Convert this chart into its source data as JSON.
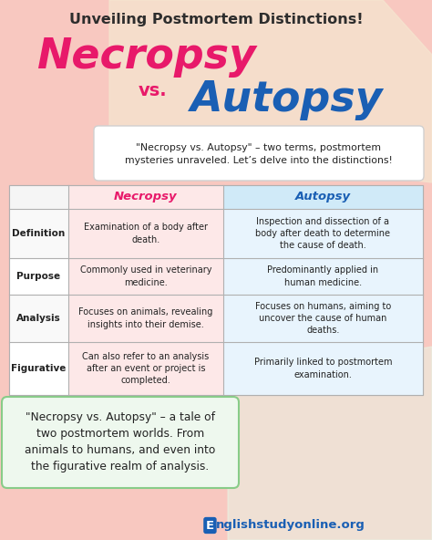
{
  "bg_color": "#f8c8c0",
  "title_line1": "Unveiling Postmortem Distinctions!",
  "title_color": "#2d2d2d",
  "necropsy_color": "#e8196a",
  "autopsy_color": "#1a5fb4",
  "vs_color": "#e8196a",
  "intro_text": "\"Necropsy vs. Autopsy\" – two terms, postmortem\nmysteries unraveled. Let’s delve into the distinctions!",
  "table_header_necropsy": "Necropsy",
  "table_header_autopsy": "Autopsy",
  "table_header_necropsy_color": "#e8196a",
  "table_header_autopsy_color": "#1a5fb4",
  "row_labels": [
    "Definition",
    "Purpose",
    "Analysis",
    "Figurative"
  ],
  "necropsy_cells": [
    "Examination of a body after\ndeath.",
    "Commonly used in veterinary\nmedicine.",
    "Focuses on animals, revealing\ninsights into their demise.",
    "Can also refer to an analysis\nafter an event or project is\ncompleted."
  ],
  "autopsy_cells": [
    "Inspection and dissection of a\nbody after death to determine\nthe cause of death.",
    "Predominantly applied in\nhuman medicine.",
    "Focuses on humans, aiming to\nuncover the cause of human\ndeaths.",
    "Primarily linked to postmortem\nexamination."
  ],
  "row_label_bg": "#f0f0f0",
  "necropsy_cell_bg": "#fde8e8",
  "autopsy_cell_bg": "#e8f4fd",
  "header_necropsy_bg": "#fde8e8",
  "header_autopsy_bg": "#d0eaf8",
  "outro_text_bold": "\"Necropsy vs. Autopsy\"",
  "outro_text_rest": " – a tale of\ntwo postmortem worlds. From\nanimals to humans, and even into\nthe figurative realm of analysis.",
  "footer_text": "nglishstudyonline.org",
  "footer_e": "E",
  "footer_color": "#1a5fb4",
  "table_border_color": "#b0b0b0",
  "intro_box_bg": "#ffffff",
  "outro_box_bg": "#eef8ee",
  "outro_border_color": "#88cc88",
  "diag_color1": "#f5e6d0",
  "diag_color2": "#e8f8e8"
}
